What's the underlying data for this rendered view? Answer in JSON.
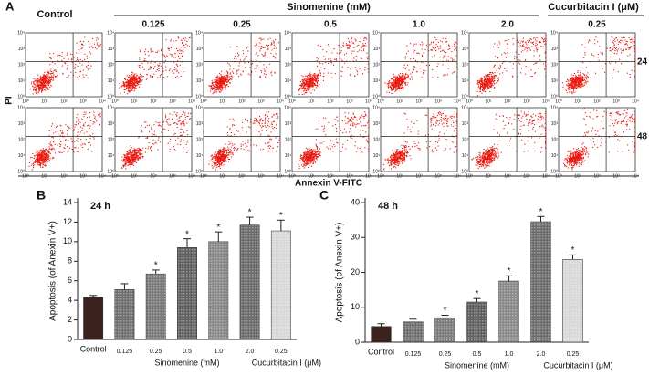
{
  "panel_a": {
    "letter": "A",
    "control": "Control",
    "sinomenine": "Sinomenine (mM)",
    "doses": [
      "0.125",
      "0.25",
      "0.5",
      "1.0",
      "2.0"
    ],
    "cucurbitacin": "Cucurbitacin I (μM)",
    "cucurbitacin_dose": "0.25",
    "times": [
      "24 h",
      "48 h"
    ],
    "y_label": "PI",
    "x_label": "Annexin V-FITC",
    "axis_ticks": [
      "10⁰",
      "10¹",
      "10²",
      "10³",
      "10⁴"
    ]
  },
  "chart_data": [
    {
      "type": "bar",
      "letter": "B",
      "annotation": "24 h",
      "y_label": "Apoptosis (of Anexin V+)",
      "categories": [
        "Control",
        "0.125",
        "0.25",
        "0.5",
        "1.0",
        "2.0",
        "0.25"
      ],
      "groups": [
        "Sinomenine (mM)",
        "Cucurbitacin I (μM)"
      ],
      "values": [
        4.3,
        5.1,
        6.7,
        9.4,
        10.0,
        11.7,
        11.1
      ],
      "errors": [
        0.2,
        0.6,
        0.4,
        0.9,
        1.0,
        0.8,
        1.1
      ],
      "significance": [
        null,
        null,
        "*",
        "*",
        "*",
        "*",
        "*"
      ],
      "colors": [
        "#3b221e",
        "#6e6e6e",
        "#7a7a7a",
        "#5f5f5f",
        "#8a8a8a",
        "#6a6a6a",
        "#d8d8d8"
      ],
      "ylim": [
        0,
        14
      ],
      "yticks": [
        0,
        2,
        4,
        6,
        8,
        10,
        12,
        14
      ]
    },
    {
      "type": "bar",
      "letter": "C",
      "annotation": "48 h",
      "y_label": "Apoptosis (of Anexin V+)",
      "categories": [
        "Control",
        "0.125",
        "0.25",
        "0.5",
        "1.0",
        "2.0",
        "0.25"
      ],
      "groups": [
        "Sinomenine (mM)",
        "Cucurbitacin I (μM)"
      ],
      "values": [
        4.5,
        5.8,
        7.0,
        11.5,
        17.5,
        34.5,
        23.7
      ],
      "errors": [
        0.8,
        0.8,
        0.7,
        1.0,
        1.5,
        1.5,
        1.3
      ],
      "significance": [
        null,
        null,
        "*",
        "*",
        "*",
        "*",
        "*"
      ],
      "colors": [
        "#3b221e",
        "#6e6e6e",
        "#7a7a7a",
        "#5f5f5f",
        "#8a8a8a",
        "#6a6a6a",
        "#d8d8d8"
      ],
      "ylim": [
        0,
        40
      ],
      "yticks": [
        0,
        10,
        20,
        30,
        40
      ]
    }
  ]
}
